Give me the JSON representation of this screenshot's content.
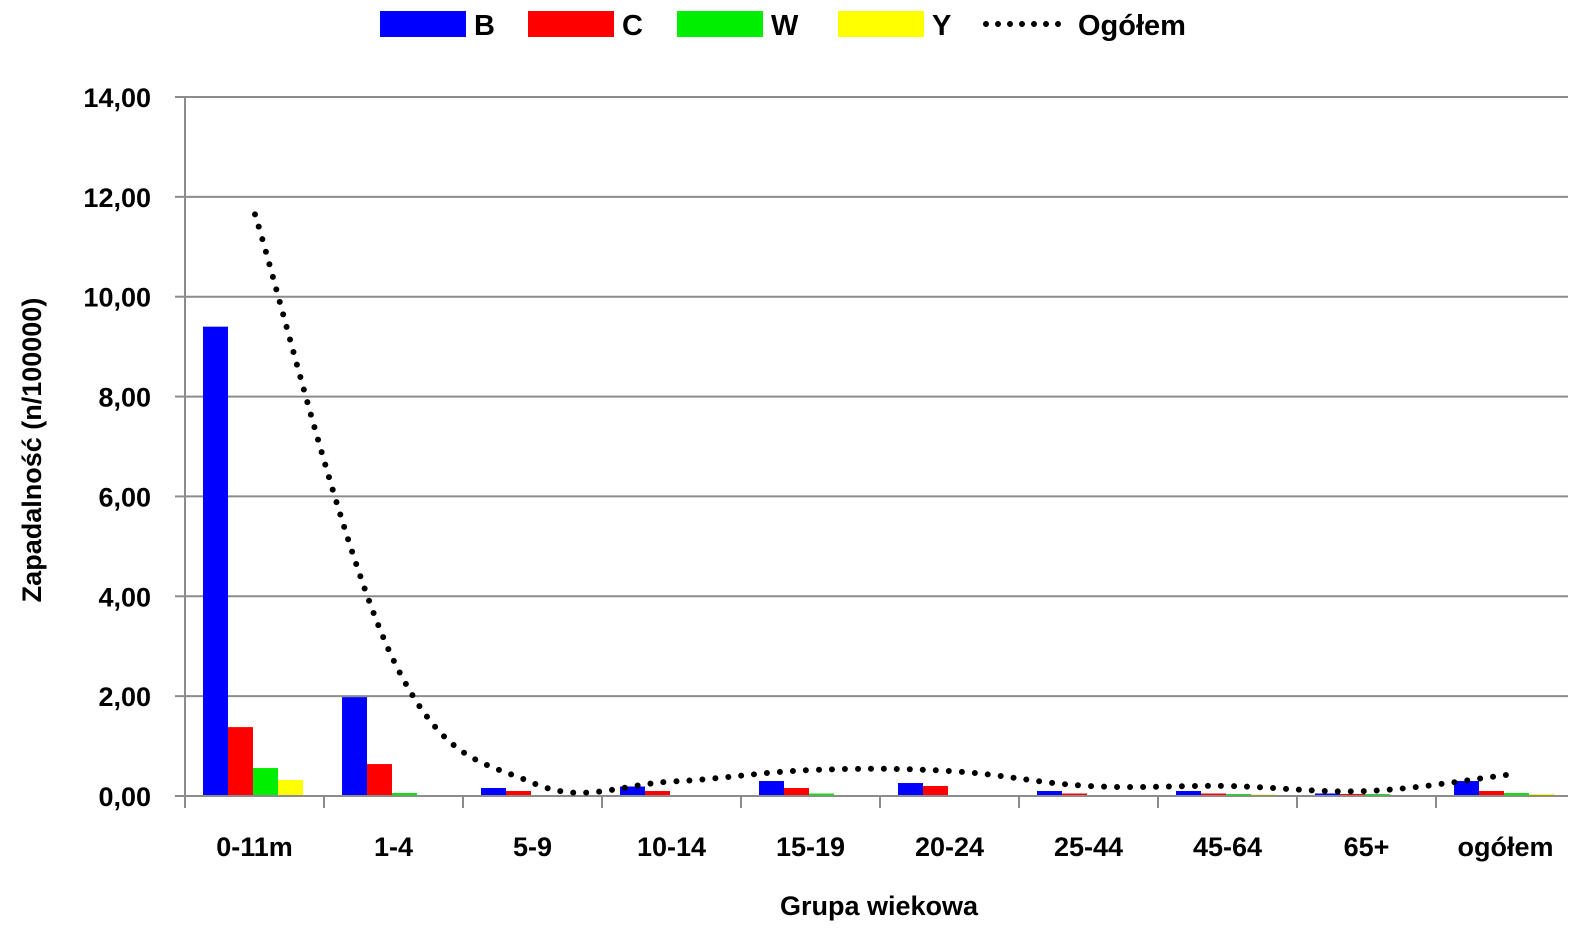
{
  "chart_data": {
    "type": "bar",
    "xlabel": "Grupa wiekowa",
    "ylabel": "Zapadalność (n/100000)",
    "ylim": [
      0,
      14
    ],
    "yticks": [
      "0,00",
      "2,00",
      "4,00",
      "6,00",
      "8,00",
      "10,00",
      "12,00",
      "14,00"
    ],
    "ytick_values": [
      0,
      2,
      4,
      6,
      8,
      10,
      12,
      14
    ],
    "grid": true,
    "legend_position": "top",
    "categories": [
      "0-11m",
      "1-4",
      "5-9",
      "10-14",
      "15-19",
      "20-24",
      "25-44",
      "45-64",
      "65+",
      "ogółem"
    ],
    "series": [
      {
        "name": "B",
        "kind": "bar",
        "color": "#0000FF",
        "values": [
          9.4,
          1.98,
          0.16,
          0.19,
          0.3,
          0.26,
          0.1,
          0.1,
          0.05,
          0.3
        ]
      },
      {
        "name": "C",
        "kind": "bar",
        "color": "#FF0000",
        "values": [
          1.38,
          0.64,
          0.1,
          0.1,
          0.16,
          0.2,
          0.05,
          0.05,
          0.04,
          0.1
        ]
      },
      {
        "name": "W",
        "kind": "bar",
        "color": "#00EE00",
        "values": [
          0.56,
          0.06,
          0.0,
          0.0,
          0.05,
          0.0,
          0.0,
          0.04,
          0.04,
          0.06
        ]
      },
      {
        "name": "Y",
        "kind": "bar",
        "color": "#FFFF00",
        "values": [
          0.32,
          0.0,
          0.0,
          0.0,
          0.0,
          0.0,
          0.0,
          0.03,
          0.0,
          0.04
        ]
      },
      {
        "name": "Ogółem",
        "kind": "line",
        "style": "dotted",
        "color": "#000000",
        "values": [
          11.65,
          2.7,
          0.26,
          0.29,
          0.52,
          0.5,
          0.2,
          0.2,
          0.1,
          0.42
        ]
      }
    ]
  }
}
